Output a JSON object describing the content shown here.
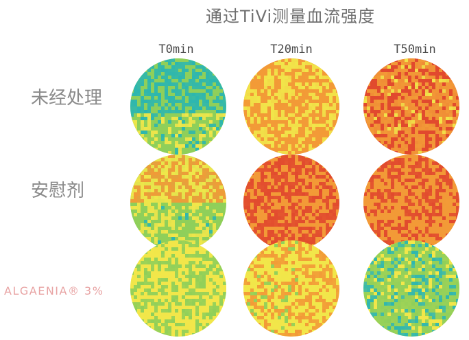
{
  "title": "通过TiVi测量血流强度",
  "columns": [
    "T0min",
    "T20min",
    "T50min"
  ],
  "rows": [
    {
      "label": "未经处理",
      "kind": "plain"
    },
    {
      "label": "安慰剂",
      "kind": "plain"
    },
    {
      "label": "ALGAENIA® 3%",
      "kind": "brand"
    }
  ],
  "palette": {
    "teal": "#2cb6b0",
    "green": "#8fcf5a",
    "yellow": "#f1e64a",
    "orange": "#f29a37",
    "red": "#e14a2e"
  }
}
